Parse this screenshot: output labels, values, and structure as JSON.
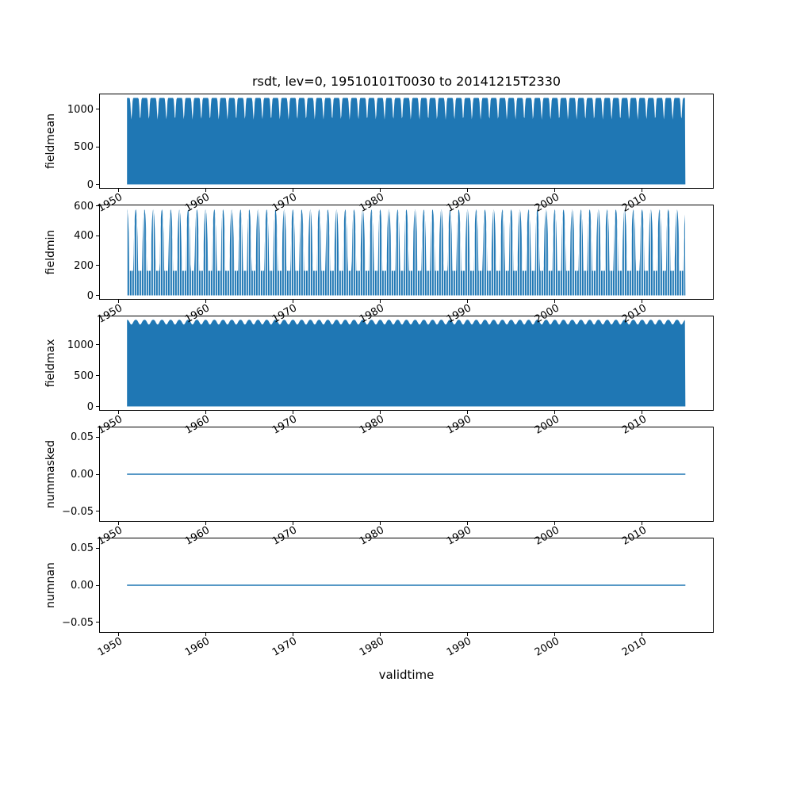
{
  "title": "rsdt, lev=0, 19510101T0030 to 20141215T2330",
  "xlabel": "validtime",
  "colors": {
    "series": "#1f77b4",
    "axes": "#000000",
    "background": "#ffffff"
  },
  "xticks": [
    {
      "v": 1950,
      "label": "1950"
    },
    {
      "v": 1960,
      "label": "1960"
    },
    {
      "v": 1970,
      "label": "1970"
    },
    {
      "v": 1980,
      "label": "1980"
    },
    {
      "v": 1990,
      "label": "1990"
    },
    {
      "v": 2000,
      "label": "2000"
    },
    {
      "v": 2010,
      "label": "2010"
    }
  ],
  "chart_data": [
    {
      "type": "area",
      "ylabel": "fieldmean",
      "xlim": [
        1947.8,
        2018.2
      ],
      "ylim": [
        -57.5,
        1207.5
      ],
      "yticks": [
        {
          "v": 0,
          "label": "0"
        },
        {
          "v": 500,
          "label": "500"
        },
        {
          "v": 1000,
          "label": "1000"
        }
      ],
      "series": [
        {
          "name": "fieldmean",
          "kind": "annual-dip-fill",
          "x_start": 1951.0,
          "x_end": 2014.96,
          "y_base": 0,
          "top_max": 1150,
          "top_min": 860,
          "dip_power": 10,
          "stripes": false
        }
      ]
    },
    {
      "type": "area",
      "ylabel": "fieldmin",
      "xlim": [
        1947.8,
        2018.2
      ],
      "ylim": [
        -29,
        609
      ],
      "yticks": [
        {
          "v": 0,
          "label": "0"
        },
        {
          "v": 200,
          "label": "200"
        },
        {
          "v": 400,
          "label": "400"
        },
        {
          "v": 600,
          "label": "600"
        }
      ],
      "series": [
        {
          "name": "fieldmin",
          "kind": "annual-spike-fill",
          "x_start": 1951.0,
          "x_end": 2014.96,
          "y_base": 0,
          "base_top": 165,
          "peak": 578,
          "spike_power": 0.45,
          "stripes": true
        }
      ]
    },
    {
      "type": "area",
      "ylabel": "fieldmax",
      "xlim": [
        1947.8,
        2018.2
      ],
      "ylim": [
        -70,
        1470
      ],
      "yticks": [
        {
          "v": 0,
          "label": "0"
        },
        {
          "v": 500,
          "label": "500"
        },
        {
          "v": 1000,
          "label": "1000"
        }
      ],
      "series": [
        {
          "name": "fieldmax",
          "kind": "annual-dip-fill",
          "x_start": 1951.0,
          "x_end": 2014.96,
          "y_base": 0,
          "top_max": 1402,
          "top_min": 1325,
          "dip_power": 1.4,
          "stripes": false
        }
      ]
    },
    {
      "type": "line",
      "ylabel": "nummasked",
      "xlim": [
        1947.8,
        2018.2
      ],
      "ylim": [
        -0.064,
        0.064
      ],
      "yticks": [
        {
          "v": -0.05,
          "label": "−0.05"
        },
        {
          "v": 0,
          "label": "0.00"
        },
        {
          "v": 0.05,
          "label": "0.05"
        }
      ],
      "series": [
        {
          "name": "nummasked",
          "kind": "flat-line",
          "x_start": 1951.0,
          "x_end": 2014.96,
          "y": 0.0
        }
      ]
    },
    {
      "type": "line",
      "ylabel": "numnan",
      "xlim": [
        1947.8,
        2018.2
      ],
      "ylim": [
        -0.064,
        0.064
      ],
      "yticks": [
        {
          "v": -0.05,
          "label": "−0.05"
        },
        {
          "v": 0,
          "label": "0.00"
        },
        {
          "v": 0.05,
          "label": "0.05"
        }
      ],
      "series": [
        {
          "name": "numnan",
          "kind": "flat-line",
          "x_start": 1951.0,
          "x_end": 2014.96,
          "y": 0.0
        }
      ]
    }
  ]
}
